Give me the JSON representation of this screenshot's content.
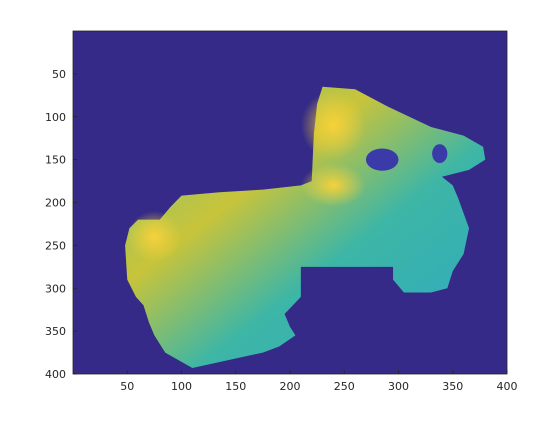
{
  "chart_data": {
    "type": "image",
    "xlim": [
      0,
      400
    ],
    "ylim": [
      0,
      400
    ],
    "xticks": [
      50,
      100,
      150,
      200,
      250,
      300,
      350,
      400
    ],
    "yticks": [
      50,
      100,
      150,
      200,
      250,
      300,
      350,
      400
    ],
    "y_reversed": true
  }
}
